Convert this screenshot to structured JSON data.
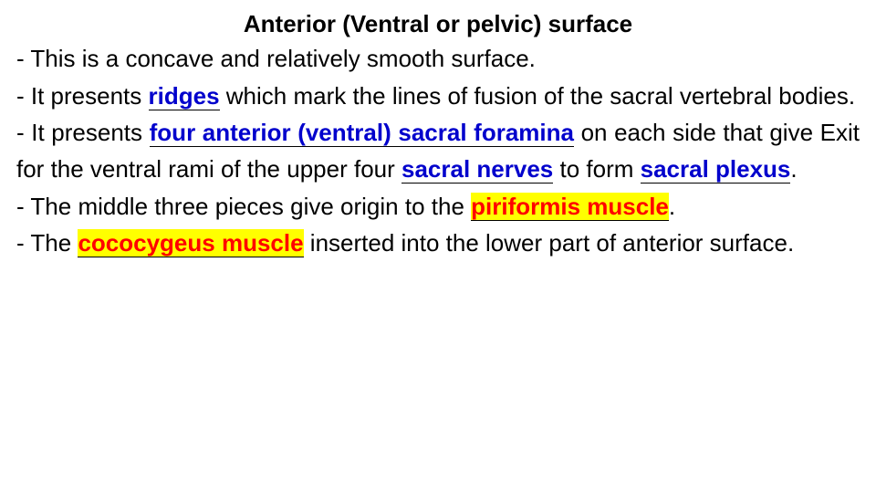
{
  "title": "Anterior (Ventral or pelvic) surface",
  "bullets": {
    "b1": "- This is a concave and relatively smooth surface.",
    "b2_pre": "- It presents ",
    "b2_term": "ridges",
    "b2_post": " which mark the lines of fusion of the sacral vertebral bodies.",
    "b3_pre": "- It presents ",
    "b3_term1": "four anterior (ventral) sacral foramina",
    "b3_mid1": " on each side that give Exit for the ventral rami of the upper four ",
    "b3_term2": "sacral nerves",
    "b3_mid2": " to form ",
    "b3_term3": "sacral plexus",
    "b3_post": ".",
    "b4_pre": "- The middle three pieces give origin to the ",
    "b4_hl": "piriformis muscle",
    "b4_post": ".",
    "b5_pre": "- The ",
    "b5_hl": "cococygeus muscle",
    "b5_post": " inserted into the lower part of anterior surface."
  },
  "styling": {
    "background_color": "#ffffff",
    "text_color": "#000000",
    "term_color": "#0000cc",
    "highlight_text_color": "#ff0000",
    "highlight_bg_color": "#ffff00",
    "font_family": "Arial",
    "title_fontsize": 26,
    "body_fontsize": 26,
    "title_weight": "bold",
    "line_height": 1.55,
    "text_align": "justify",
    "underline_terms": true
  }
}
